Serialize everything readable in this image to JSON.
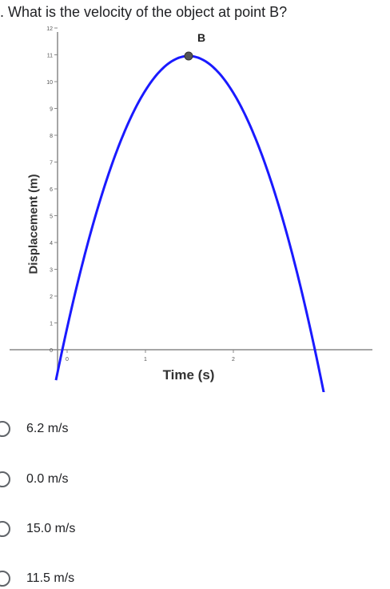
{
  "question": {
    "text": ". What is the velocity of the object at point B?"
  },
  "graph": {
    "point_label": "B",
    "xlabel": "Time (s)",
    "ylabel": "Displacement (m)",
    "y_ticks": [
      "0",
      "1",
      "2",
      "3",
      "4",
      "5",
      "6",
      "7",
      "8",
      "9",
      "10",
      "11",
      "12"
    ],
    "x_ticks": [
      "0",
      "1",
      "2"
    ],
    "curve_color": "#1a1aff",
    "point_color": "#555555",
    "axis_color": "#888888"
  },
  "options": [
    {
      "label": "6.2 m/s",
      "selected": false
    },
    {
      "label": "0.0 m/s",
      "selected": false
    },
    {
      "label": "15.0 m/s",
      "selected": false
    },
    {
      "label": "11.5 m/s",
      "selected": false
    }
  ]
}
